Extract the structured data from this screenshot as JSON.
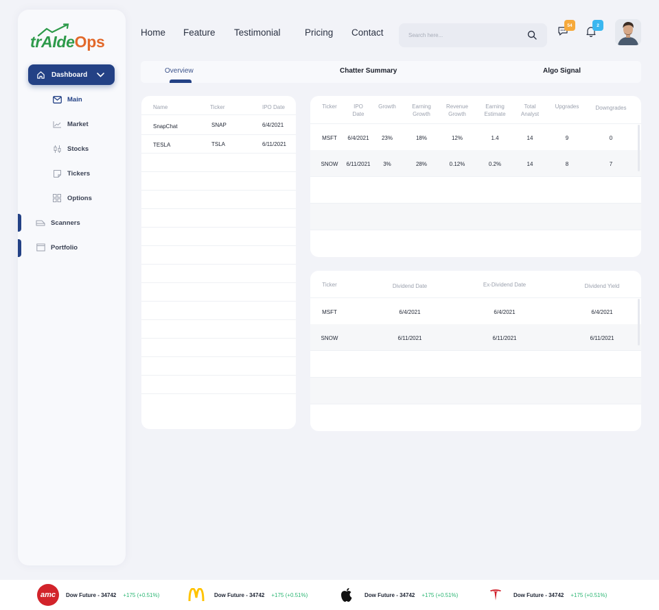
{
  "app": {
    "logo_part1": "trAIde",
    "logo_part2": "Ops"
  },
  "sidebar": {
    "dashboard_label": "Dashboard",
    "sub_items": [
      {
        "label": "Main",
        "icon": "mail-icon"
      },
      {
        "label": "Market",
        "icon": "trend-line-icon"
      },
      {
        "label": "Stocks",
        "icon": "candlestick-icon"
      },
      {
        "label": "Tickers",
        "icon": "sticky-note-icon"
      },
      {
        "label": "Options",
        "icon": "grid-icon"
      }
    ],
    "items": [
      {
        "label": "Scanners",
        "icon": "scanner-icon"
      },
      {
        "label": "Portfolio",
        "icon": "folder-icon"
      }
    ]
  },
  "topnav": {
    "links": [
      "Home",
      "Feature",
      "Testimonial",
      "Pricing",
      "Contact"
    ]
  },
  "search": {
    "placeholder": "Search here..."
  },
  "header": {
    "messages_badge": "54",
    "notifications_badge": "2",
    "messages_badge_color": "#f6a93b",
    "notifications_badge_color": "#3ab7f0"
  },
  "tabs": [
    "Overview",
    "Chatter Summary",
    "Algo Signal"
  ],
  "ipo_table": {
    "headers": [
      "Name",
      "Ticker",
      "IPO Date"
    ],
    "rows": [
      [
        "SnapChat",
        "SNAP",
        "6/4/2021"
      ],
      [
        "TESLA",
        "TSLA",
        "6/11/2021"
      ]
    ]
  },
  "growth_table": {
    "headers": [
      "Ticker",
      "IPO\nDate",
      "Growth",
      "Earning\nGrowth",
      "Revenue\nGrowth",
      "Earning\nEstimate",
      "Total\nAnalyst",
      "Upgrades",
      "Downgrades"
    ],
    "rows": [
      [
        "MSFT",
        "6/4/2021",
        "23%",
        "18%",
        "12%",
        "1.4",
        "14",
        "9",
        "0"
      ],
      [
        "SNOW",
        "6/11/2021",
        "3%",
        "28%",
        "0.12%",
        "0.2%",
        "14",
        "8",
        "7"
      ]
    ]
  },
  "dividend_table": {
    "headers": [
      "Ticker",
      "Dividend Date",
      "Ex-Dividend Date",
      "Dividend Yield"
    ],
    "rows": [
      [
        "MSFT",
        "6/4/2021",
        "6/4/2021",
        "6/4/2021"
      ],
      [
        "SNOW",
        "6/11/2021",
        "6/11/2021",
        "6/11/2021"
      ]
    ]
  },
  "ticker_bar": [
    {
      "logo": "amc-logo-icon",
      "logo_text": "amc",
      "name": "Dow Future - 34742",
      "change": "+175 (+0.51%)"
    },
    {
      "logo": "mcdonalds-logo-icon",
      "logo_text": "",
      "name": "Dow Future - 34742",
      "change": "+175 (+0.51%)"
    },
    {
      "logo": "apple-logo-icon",
      "logo_text": "",
      "name": "Dow Future - 34742",
      "change": "+175 (+0.51%)"
    },
    {
      "logo": "tesla-logo-icon",
      "logo_text": "",
      "name": "Dow Future - 34742",
      "change": "+175 (+0.51%)"
    }
  ],
  "colors": {
    "primary": "#234185",
    "positive": "#2bb673",
    "logo_green": "#2d9a4a",
    "logo_orange": "#e2692b"
  }
}
